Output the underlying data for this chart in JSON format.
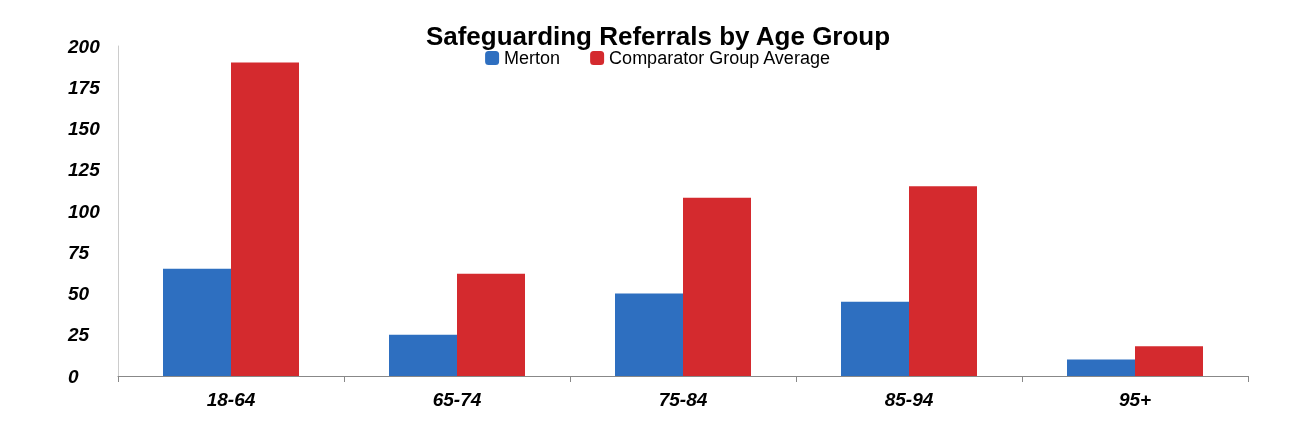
{
  "chart_data": {
    "type": "bar",
    "title": "Safeguarding Referrals by Age Group",
    "categories": [
      "18-64",
      "65-74",
      "75-84",
      "85-94",
      "95+"
    ],
    "series": [
      {
        "name": "Merton",
        "color": "#2e6fc0",
        "values": [
          65,
          25,
          50,
          45,
          10
        ]
      },
      {
        "name": "Comparator Group Average",
        "color": "#d42a2e",
        "values": [
          190,
          62,
          108,
          115,
          18
        ]
      }
    ],
    "ylim": [
      0,
      200
    ],
    "yticks": [
      0,
      25,
      50,
      75,
      100,
      125,
      150,
      175,
      200
    ],
    "grid": false,
    "legend": "top"
  }
}
